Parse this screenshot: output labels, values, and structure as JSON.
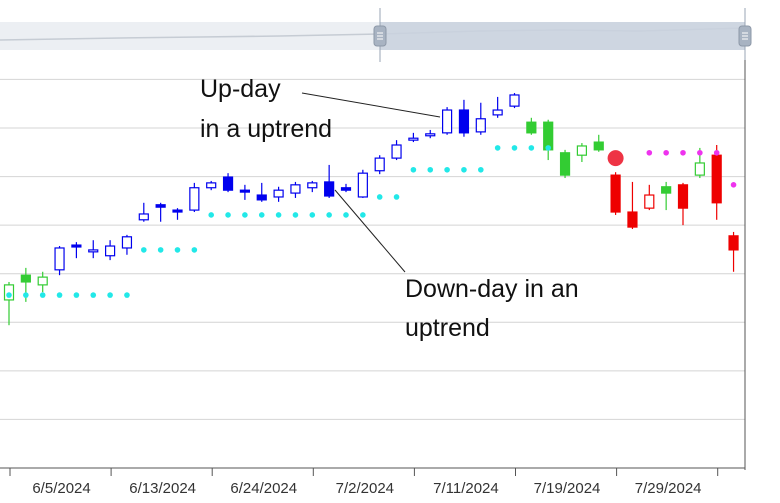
{
  "chart_data": {
    "type": "candlestick",
    "categories": [
      null,
      null,
      null,
      "6/5/2024",
      null,
      null,
      null,
      null,
      null,
      "6/13/2024",
      null,
      null,
      null,
      null,
      null,
      "6/24/2024",
      null,
      null,
      null,
      null,
      null,
      "7/2/2024",
      null,
      null,
      null,
      null,
      null,
      "7/11/2024",
      null,
      null,
      null,
      null,
      null,
      "7/19/2024",
      null,
      null,
      null,
      null,
      null,
      "7/29/2024",
      null,
      null,
      null,
      null
    ],
    "open": [
      34.6,
      39.7,
      37.7,
      40.8,
      45.9,
      44.5,
      43.7,
      45.3,
      51.1,
      54.2,
      53.1,
      53.1,
      57.7,
      59.9,
      57.2,
      56.2,
      55.8,
      56.6,
      57.7,
      58.9,
      57.7,
      55.8,
      61.2,
      63.8,
      67.5,
      68.4,
      69.0,
      73.7,
      69.2,
      72.7,
      74.5,
      71.2,
      71.2,
      64.9,
      64.4,
      67.1,
      60.3,
      52.7,
      53.5,
      57.9,
      58.3,
      60.3,
      64.4,
      47.8
    ],
    "high": [
      38.3,
      41.2,
      40.4,
      45.7,
      46.5,
      46.9,
      46.9,
      48.0,
      54.6,
      54.6,
      53.5,
      58.7,
      59.1,
      60.7,
      58.3,
      58.7,
      57.9,
      58.9,
      59.1,
      62.4,
      58.5,
      61.4,
      64.4,
      67.5,
      69.0,
      69.6,
      74.3,
      75.8,
      75.2,
      76.4,
      77.2,
      72.1,
      71.7,
      65.5,
      66.9,
      68.6,
      60.9,
      58.9,
      58.3,
      58.9,
      58.7,
      65.9,
      66.5,
      48.6
    ],
    "low": [
      29.4,
      34.2,
      36.2,
      39.7,
      43.2,
      43.2,
      42.8,
      43.9,
      50.7,
      50.7,
      51.1,
      52.7,
      57.2,
      56.8,
      55.2,
      54.8,
      54.8,
      55.6,
      56.8,
      55.6,
      56.8,
      55.6,
      60.5,
      63.4,
      67.1,
      67.9,
      68.6,
      68.2,
      68.6,
      72.1,
      74.1,
      68.6,
      63.4,
      59.7,
      63.0,
      65.1,
      52.1,
      49.2,
      53.1,
      53.1,
      50.0,
      59.7,
      51.1,
      40.4
    ],
    "close": [
      37.7,
      38.3,
      39.3,
      45.3,
      45.5,
      44.9,
      45.7,
      47.6,
      52.3,
      53.7,
      52.7,
      57.7,
      58.7,
      57.2,
      56.8,
      55.2,
      57.2,
      58.3,
      58.7,
      56.0,
      57.2,
      60.7,
      63.8,
      66.5,
      67.9,
      68.8,
      73.7,
      69.0,
      71.9,
      73.7,
      76.8,
      69.0,
      65.5,
      60.3,
      66.3,
      65.5,
      52.7,
      49.6,
      56.2,
      56.6,
      53.5,
      62.8,
      54.6,
      44.9
    ],
    "candle_colors": [
      "#33cc33",
      "#33cc33",
      "#33cc33",
      "#0000ee",
      "#0000ee",
      "#0000ee",
      "#0000ee",
      "#0000ee",
      "#0000ee",
      "#0000ee",
      "#0000ee",
      "#0000ee",
      "#0000ee",
      "#0000ee",
      "#0000ee",
      "#0000ee",
      "#0000ee",
      "#0000ee",
      "#0000ee",
      "#0000ee",
      "#0000ee",
      "#0000ee",
      "#0000ee",
      "#0000ee",
      "#0000ee",
      "#0000ee",
      "#0000ee",
      "#0000ee",
      "#0000ee",
      "#0000ee",
      "#0000ee",
      "#33cc33",
      "#33cc33",
      "#33cc33",
      "#33cc33",
      "#33cc33",
      "#ee0000",
      "#ee0000",
      "#ee0000",
      "#33cc33",
      "#ee0000",
      "#33cc33",
      "#ee0000",
      "#ee0000"
    ],
    "overlays": [
      {
        "color": "#22e8e8",
        "values": [
          35.6,
          35.6,
          35.6,
          35.6,
          35.6,
          35.6,
          35.6,
          35.6,
          44.9,
          44.9,
          44.9,
          44.9,
          52.1,
          52.1,
          52.1,
          52.1,
          52.1,
          52.1,
          52.1,
          52.1,
          52.1,
          52.1,
          55.8,
          55.8,
          61.4,
          61.4,
          61.4,
          61.4,
          61.4,
          65.9,
          65.9,
          65.9,
          65.9,
          null,
          null,
          null,
          null,
          null,
          null,
          null,
          null,
          null,
          null,
          null
        ]
      },
      {
        "color": "#ee33ee",
        "values": [
          null,
          null,
          null,
          null,
          null,
          null,
          null,
          null,
          null,
          null,
          null,
          null,
          null,
          null,
          null,
          null,
          null,
          null,
          null,
          null,
          null,
          null,
          null,
          null,
          null,
          null,
          null,
          null,
          null,
          null,
          null,
          null,
          null,
          null,
          null,
          null,
          null,
          null,
          64.9,
          64.9,
          64.9,
          64.9,
          64.9,
          58.3
        ]
      }
    ],
    "signal": {
      "color": "#ee3344",
      "values": [
        null,
        null,
        null,
        null,
        null,
        null,
        null,
        null,
        null,
        null,
        null,
        null,
        null,
        null,
        null,
        null,
        null,
        null,
        null,
        null,
        null,
        null,
        null,
        null,
        null,
        null,
        null,
        null,
        null,
        null,
        null,
        null,
        null,
        null,
        null,
        null,
        63.8,
        null,
        null,
        null,
        null,
        null,
        null,
        null
      ]
    },
    "ylim": [
      0,
      84
    ],
    "yticks": [
      0,
      10,
      20,
      30,
      40,
      50,
      60,
      70,
      80
    ],
    "grid": true,
    "annotations": [
      {
        "lines": [
          "Up-day",
          "in a uptrend"
        ]
      },
      {
        "lines": [
          "Down-day in an",
          "uptrend"
        ]
      }
    ]
  }
}
